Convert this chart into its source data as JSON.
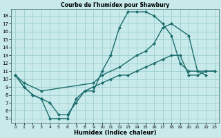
{
  "title": "Courbe de l'humidex pour Shawbury",
  "xlabel": "Humidex (Indice chaleur)",
  "bg_color": "#c8eaea",
  "grid_color": "#9ecece",
  "line_color": "#1a6b6b",
  "xlim": [
    -0.5,
    23.5
  ],
  "ylim": [
    4.5,
    18.9
  ],
  "xticks": [
    0,
    1,
    2,
    3,
    4,
    5,
    6,
    7,
    8,
    9,
    10,
    11,
    12,
    13,
    14,
    15,
    16,
    17,
    18,
    19,
    20,
    21,
    22,
    23
  ],
  "yticks": [
    5,
    6,
    7,
    8,
    9,
    10,
    11,
    12,
    13,
    14,
    15,
    16,
    17,
    18
  ],
  "line1_x": [
    0,
    1,
    2,
    3,
    4,
    5,
    6,
    7,
    8,
    9,
    10,
    11,
    12,
    13,
    14,
    15,
    16,
    17,
    18,
    19,
    20,
    21,
    22
  ],
  "line1_y": [
    10.5,
    9.0,
    8.0,
    7.5,
    5.0,
    5.0,
    5.0,
    7.5,
    8.5,
    8.5,
    11.0,
    13.0,
    16.5,
    18.5,
    18.5,
    18.5,
    18.0,
    17.0,
    15.5,
    12.0,
    11.0,
    11.0,
    10.5
  ],
  "line2_x": [
    0,
    1,
    3,
    9,
    10,
    12,
    14,
    15,
    16,
    17,
    18,
    20,
    21,
    22,
    23
  ],
  "line2_y": [
    10.5,
    9.5,
    8.5,
    9.5,
    10.5,
    11.5,
    13.0,
    13.5,
    14.5,
    16.5,
    17.0,
    15.5,
    11.0,
    11.0,
    11.0
  ],
  "line3_x": [
    0,
    1,
    2,
    3,
    4,
    5,
    6,
    7,
    8,
    9,
    10,
    11,
    12,
    13,
    14,
    15,
    16,
    17,
    18,
    19,
    20,
    21,
    22,
    23
  ],
  "line3_y": [
    10.5,
    9.0,
    8.0,
    7.5,
    7.0,
    5.5,
    5.5,
    7.0,
    8.5,
    9.0,
    9.5,
    10.0,
    10.5,
    10.5,
    11.0,
    11.5,
    12.0,
    12.5,
    13.0,
    13.0,
    10.5,
    10.5,
    11.0,
    11.0
  ]
}
